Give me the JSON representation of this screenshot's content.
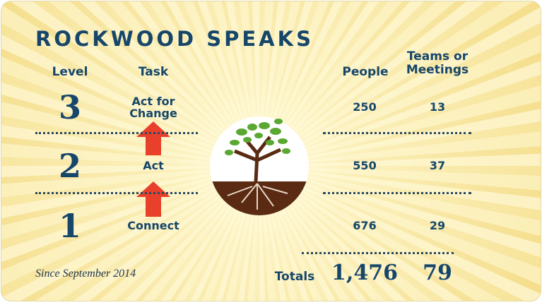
{
  "title": "ROCKWOOD SPEAKS",
  "headers": {
    "level": "Level",
    "task": "Task",
    "people": "People",
    "teams": "Teams or Meetings"
  },
  "rows": [
    {
      "level": "3",
      "task": "Act for Change",
      "people": "250",
      "teams": "13"
    },
    {
      "level": "2",
      "task": "Act",
      "people": "550",
      "teams": "37"
    },
    {
      "level": "1",
      "task": "Connect",
      "people": "676",
      "teams": "29"
    }
  ],
  "footer": {
    "since": "Since September 2014",
    "totals_label": "Totals",
    "people_total": "1,476",
    "teams_total": "79"
  }
}
